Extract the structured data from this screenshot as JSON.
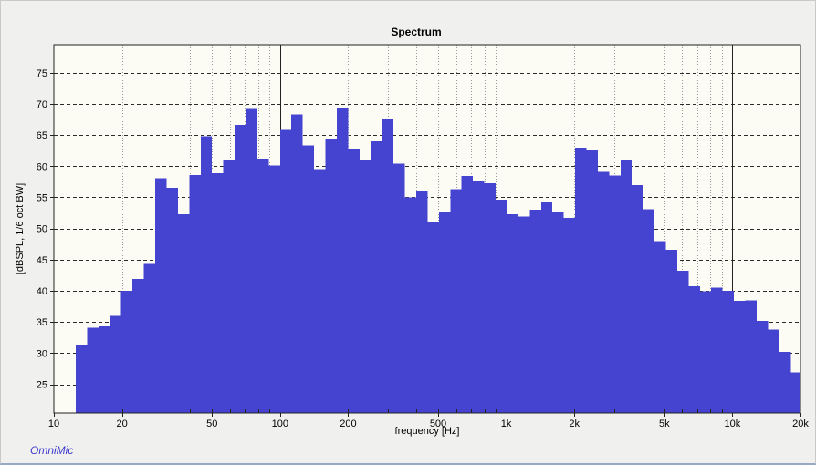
{
  "window": {
    "background": "#f0f0ee"
  },
  "chart_data": {
    "type": "bar",
    "title": "Spectrum",
    "xlabel": "frequency [Hz]",
    "ylabel": "[dBSPL, 1/6 oct BW]",
    "watermark": "OmniMic",
    "x_scale": "log",
    "xlim": [
      10,
      20000
    ],
    "ylim": [
      20.4,
      79.5
    ],
    "grid": "on",
    "legend": "none",
    "bar_color": "#4444d0",
    "plot_bg": "#fcfcf4",
    "solid_gridline_color": "#222222",
    "dashed_gridline_color": "#2b2b2b",
    "dotted_gridline_color": "#9a9a9a",
    "y_ticks": [
      25,
      30,
      35,
      40,
      45,
      50,
      55,
      60,
      65,
      70,
      75
    ],
    "x_ticks": [
      {
        "f": 10,
        "label": "10"
      },
      {
        "f": 20,
        "label": "20"
      },
      {
        "f": 50,
        "label": "50"
      },
      {
        "f": 100,
        "label": "100"
      },
      {
        "f": 200,
        "label": "200"
      },
      {
        "f": 500,
        "label": "500"
      },
      {
        "f": 1000,
        "label": "1k"
      },
      {
        "f": 2000,
        "label": "2k"
      },
      {
        "f": 5000,
        "label": "5k"
      },
      {
        "f": 10000,
        "label": "10k"
      },
      {
        "f": 20000,
        "label": "20k"
      }
    ],
    "solid_gridlines_hz": [
      100,
      1000,
      10000
    ],
    "band_start_hz": 12.5,
    "bands_per_octave": 6,
    "band_centers_hz": [
      13.2,
      14.9,
      16.7,
      18.7,
      21,
      23.6,
      26.5,
      29.7,
      33.3,
      37.4,
      42,
      47.1,
      52.9,
      59.3,
      66.6,
      74.7,
      83.8,
      94.1,
      105.6,
      118.5,
      132.9,
      149.2,
      167.4,
      187.8,
      210.7,
      236.4,
      265.3,
      297.6,
      334,
      374.8,
      420.5,
      471.9,
      529.5,
      594.1,
      666.7,
      748.1,
      839.4,
      941.9,
      1057,
      1186,
      1331,
      1493,
      1676,
      1880,
      2110,
      2368,
      2657,
      2981,
      3345,
      3754,
      4212,
      4727,
      5304,
      5952,
      6678,
      7494,
      8409,
      9435,
      10588,
      11881,
      13332,
      14960,
      16787,
      18836
    ],
    "values_db": [
      31.4,
      34.1,
      34.3,
      36.0,
      40.0,
      41.9,
      44.3,
      58.1,
      56.5,
      52.3,
      58.6,
      64.8,
      58.9,
      61.0,
      66.6,
      69.3,
      61.2,
      60.1,
      65.8,
      68.3,
      63.3,
      59.5,
      64.4,
      69.4,
      62.8,
      61.0,
      64.0,
      67.6,
      60.4,
      55.0,
      56.1,
      51.0,
      52.7,
      56.3,
      58.4,
      57.7,
      57.3,
      54.6,
      52.3,
      51.9,
      53.0,
      54.2,
      52.7,
      51.7,
      63.0,
      62.7,
      59.1,
      58.5,
      60.9,
      57.0,
      53.1,
      48.0,
      46.6,
      43.2,
      40.7,
      39.9,
      40.5,
      40.0,
      38.4,
      38.5,
      35.2,
      33.8,
      30.2,
      26.9
    ]
  }
}
